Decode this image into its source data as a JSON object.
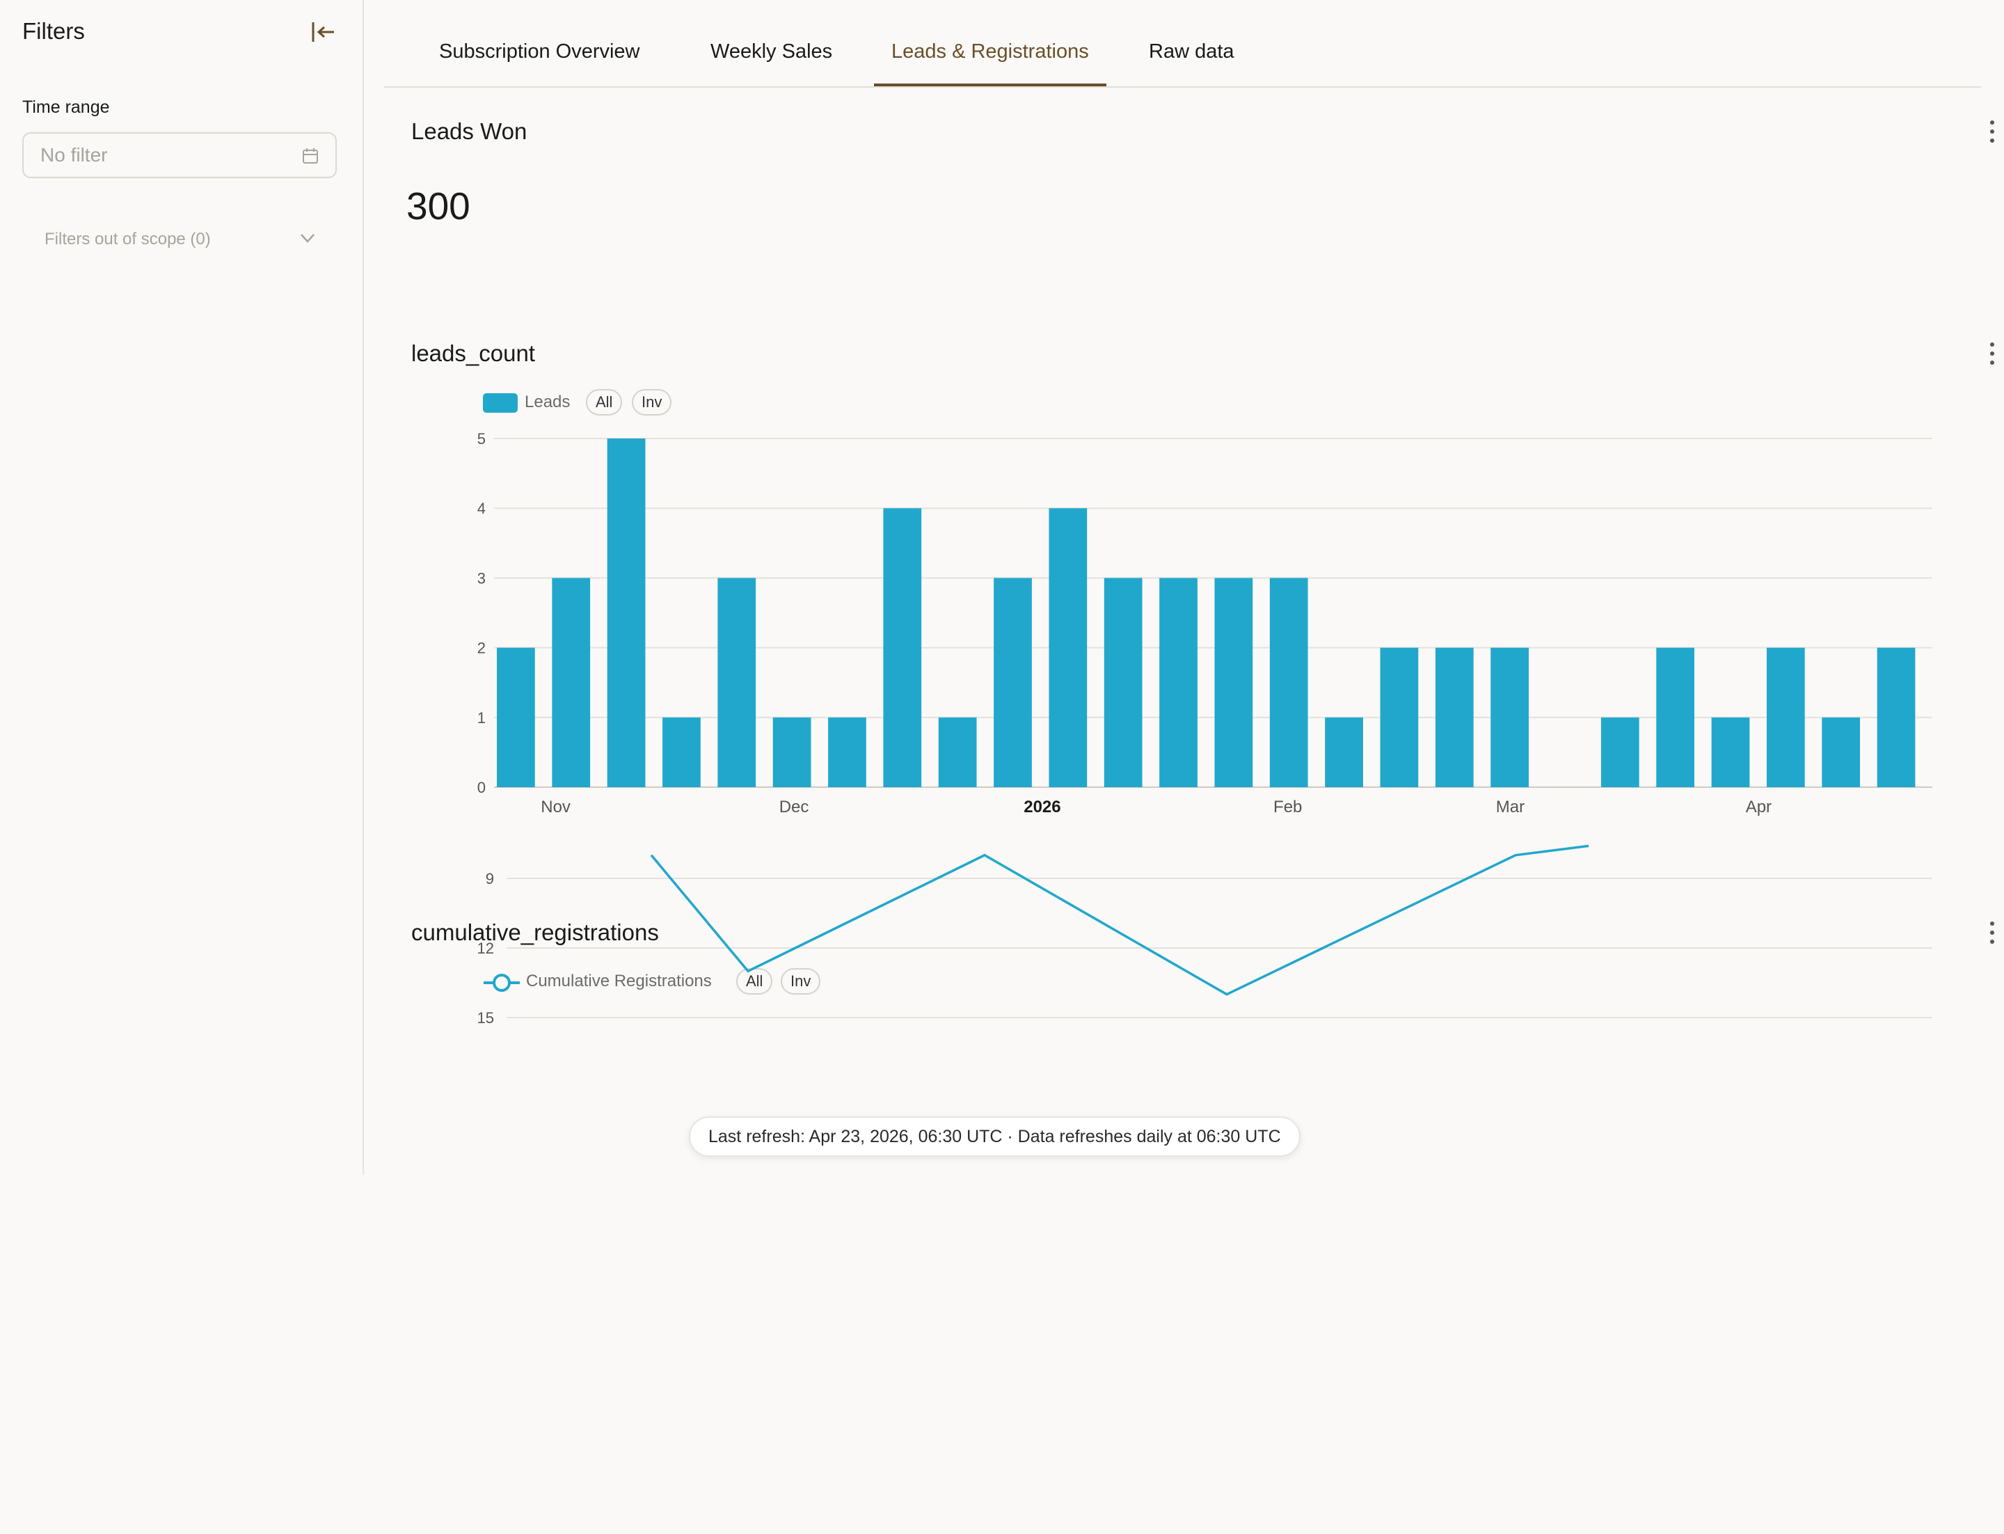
{
  "sidebar": {
    "title": "Filters",
    "time_range_label": "Time range",
    "time_range_placeholder": "No filter",
    "out_of_scope": "Filters out of scope (0)"
  },
  "tabs": [
    {
      "label": "Subscription Overview",
      "active": false
    },
    {
      "label": "Weekly Sales",
      "active": false
    },
    {
      "label": "Leads & Registrations",
      "active": true
    },
    {
      "label": "Raw data",
      "active": false
    }
  ],
  "leads_won": {
    "title": "Leads Won",
    "value": "300"
  },
  "leads_chart": {
    "title": "leads_count",
    "legend": {
      "series": "Leads",
      "all": "All",
      "inv": "Inv"
    }
  },
  "cumulative_chart": {
    "title": "cumulative_registrations",
    "legend": {
      "series": "Cumulative Registrations",
      "all": "All",
      "inv": "Inv"
    }
  },
  "tooltip": "Last refresh: Apr 23, 2026, 06:30 UTC · Data refreshes daily at 06:30 UTC",
  "colors": {
    "accent": "#6b4e2a",
    "series": "#22a7cc"
  },
  "chart_data": [
    {
      "type": "bar",
      "title": "leads_count",
      "series": [
        {
          "name": "Leads",
          "values": [
            2,
            3,
            5,
            1,
            3,
            1,
            1,
            4,
            1,
            3,
            4,
            3,
            3,
            3,
            3,
            1,
            2,
            2,
            2,
            0,
            1,
            2,
            1,
            2,
            1,
            2
          ]
        }
      ],
      "xticks": [
        "Nov",
        "Dec",
        "2026",
        "Feb",
        "Mar",
        "Apr"
      ],
      "yticks": [
        0,
        1,
        2,
        3,
        4,
        5
      ],
      "ylim": [
        0,
        5
      ],
      "grid": true,
      "legend": "top-left"
    },
    {
      "type": "line",
      "title": "cumulative_registrations",
      "series": [
        {
          "name": "Cumulative Registrations",
          "values": [
            13,
            8,
            14,
            8
          ]
        }
      ],
      "yticks": [
        9,
        12,
        15
      ],
      "grid": true,
      "legend": "top-left"
    }
  ]
}
